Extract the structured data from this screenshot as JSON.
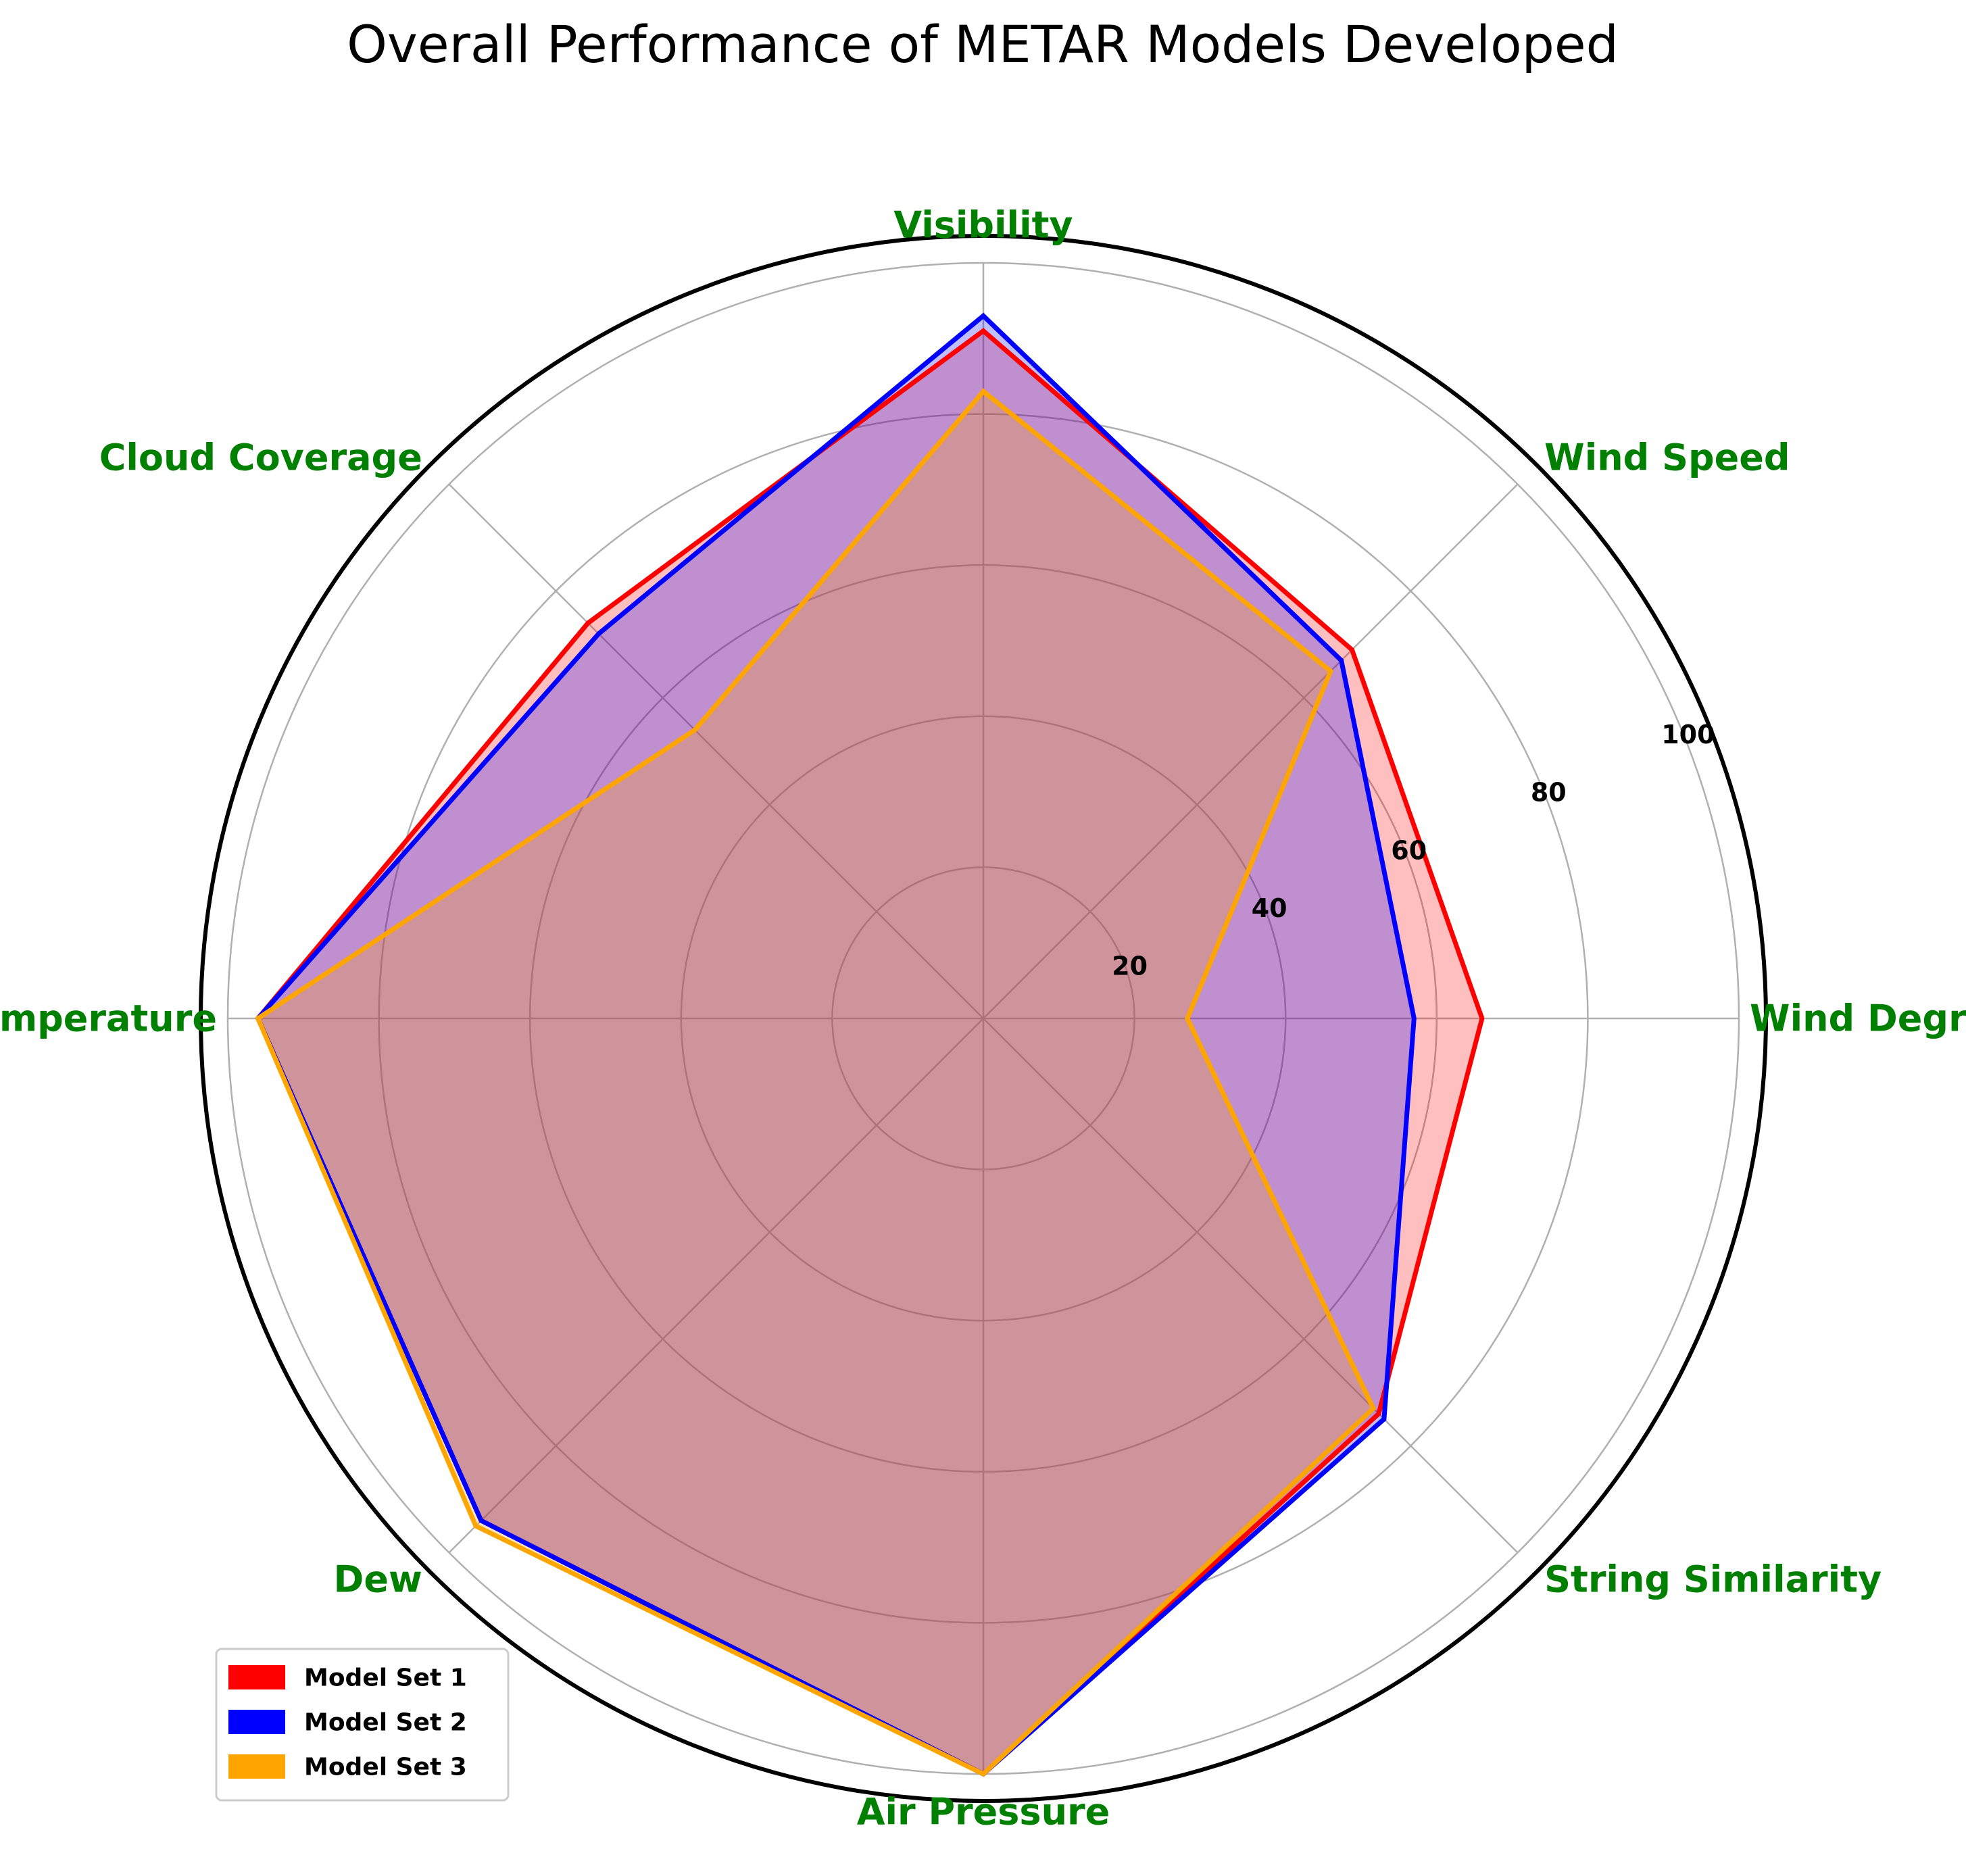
{
  "chart_data": {
    "type": "radar",
    "title": "Overall Performance of METAR Models Developed",
    "categories": [
      "Wind Degree",
      "Wind Speed",
      "Visibility",
      "Cloud Coverage",
      "Temperature",
      "Dew",
      "Air Pressure",
      "String Similarity"
    ],
    "rlim": [
      0,
      100
    ],
    "radial_ticks": [
      20,
      40,
      60,
      80,
      100
    ],
    "grid": true,
    "legend_position": "lower-left",
    "series": [
      {
        "name": "Model Set 1",
        "color": "#ff0000",
        "fill_alpha": 0.25,
        "values": [
          66,
          69,
          91,
          74,
          96,
          94,
          100,
          74
        ]
      },
      {
        "name": "Model Set 2",
        "color": "#0000ff",
        "fill_alpha": 0.25,
        "values": [
          57,
          67,
          93,
          72,
          96,
          94,
          100,
          75
        ]
      },
      {
        "name": "Model Set 3",
        "color": "#ffa500",
        "fill_alpha": 0.25,
        "values": [
          27,
          65,
          83,
          54,
          96,
          95,
          100,
          73
        ]
      }
    ]
  }
}
